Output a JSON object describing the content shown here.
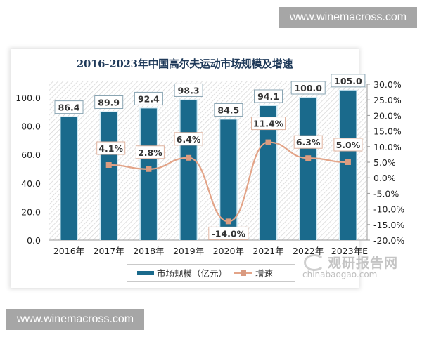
{
  "watermarks": {
    "top": "www.winemacross.com",
    "bottom": "www.winemacross.com"
  },
  "logo": {
    "cn": "观研报告网",
    "en": "chinabaogao.com"
  },
  "chart_data": {
    "type": "bar+line",
    "title": "2016-2023年中国高尔夫运动市场规模及增速",
    "categories": [
      "2016年",
      "2017年",
      "2018年",
      "2019年",
      "2020年",
      "2021年",
      "2022年",
      "2023年E"
    ],
    "series": [
      {
        "name": "市场规模（亿元）",
        "type": "bar",
        "axis": "left",
        "color": "#1a6a8c",
        "values": [
          86.4,
          89.9,
          92.4,
          98.3,
          84.5,
          94.1,
          100.0,
          105.0
        ],
        "labels": [
          "86.4",
          "89.9",
          "92.4",
          "98.3",
          "84.5",
          "94.1",
          "100.0",
          "105.0"
        ]
      },
      {
        "name": "增速",
        "type": "line",
        "axis": "right",
        "color": "#e3a488",
        "values": [
          null,
          4.1,
          2.8,
          6.4,
          -14.0,
          11.4,
          6.3,
          5.0
        ],
        "labels": [
          "",
          "4.1%",
          "2.8%",
          "6.4%",
          "-14.0%",
          "11.4%",
          "6.3%",
          "5.0%"
        ]
      }
    ],
    "left_axis": {
      "ylim": [
        0,
        100
      ],
      "ticks": [
        "100.0",
        "80.0",
        "60.0",
        "40.0",
        "20.0",
        "0.0"
      ]
    },
    "right_axis": {
      "ylim": [
        -20,
        30
      ],
      "ticks": [
        "30.0%",
        "25.0%",
        "20.0%",
        "15.0%",
        "10.0%",
        "5.0%",
        "0.0%",
        "-5.0%",
        "-10.0%",
        "-15.0%",
        "-20.0%"
      ]
    },
    "xlabel": "",
    "ylabel": "",
    "legend": {
      "position": "bottom",
      "items": [
        "市场规模（亿元）",
        "增速"
      ]
    },
    "grid": false
  }
}
